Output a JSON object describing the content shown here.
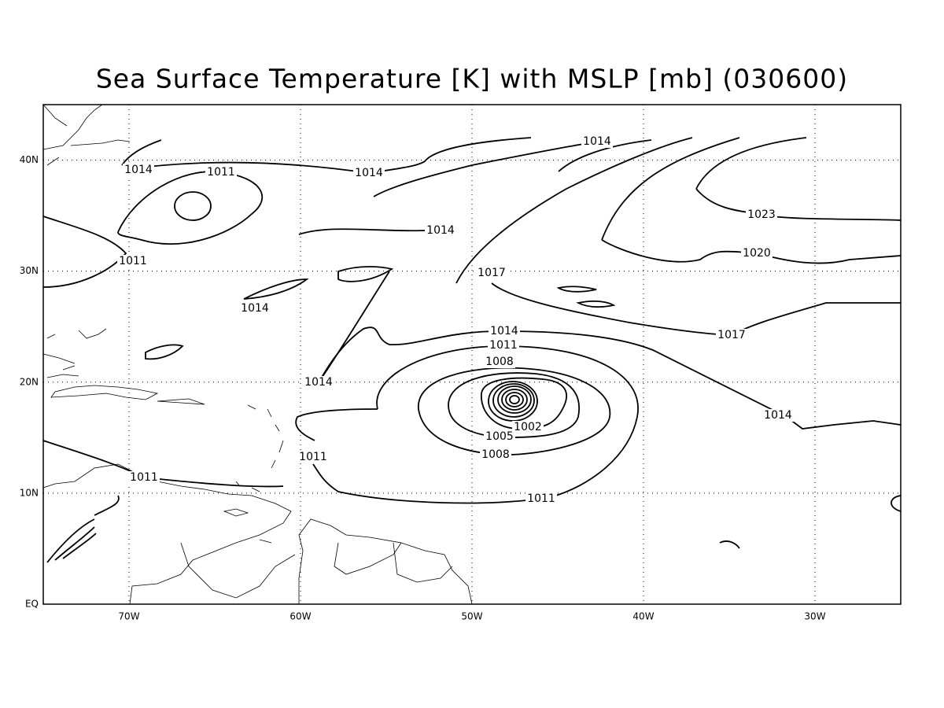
{
  "title": "Sea Surface Temperature [K] with MSLP [mb] (030600)",
  "map": {
    "lon_range": [
      -75,
      -25
    ],
    "lat_range": [
      0,
      45
    ],
    "lon_ticks": [
      {
        "value": -70,
        "label": "70W"
      },
      {
        "value": -60,
        "label": "60W"
      },
      {
        "value": -50,
        "label": "50W"
      },
      {
        "value": -40,
        "label": "40W"
      },
      {
        "value": -30,
        "label": "30W"
      }
    ],
    "lat_ticks": [
      {
        "value": 0,
        "label": "EQ"
      },
      {
        "value": 10,
        "label": "10N"
      },
      {
        "value": 20,
        "label": "20N"
      },
      {
        "value": 30,
        "label": "30N"
      },
      {
        "value": 40,
        "label": "40N"
      }
    ],
    "contour_labels": [
      1014,
      1011,
      1014,
      1014,
      1014,
      1011,
      1014,
      1017,
      1023,
      1020,
      1017,
      1014,
      1011,
      1008,
      1014,
      1014,
      1002,
      1005,
      1008,
      1011,
      1011,
      1011
    ]
  }
}
